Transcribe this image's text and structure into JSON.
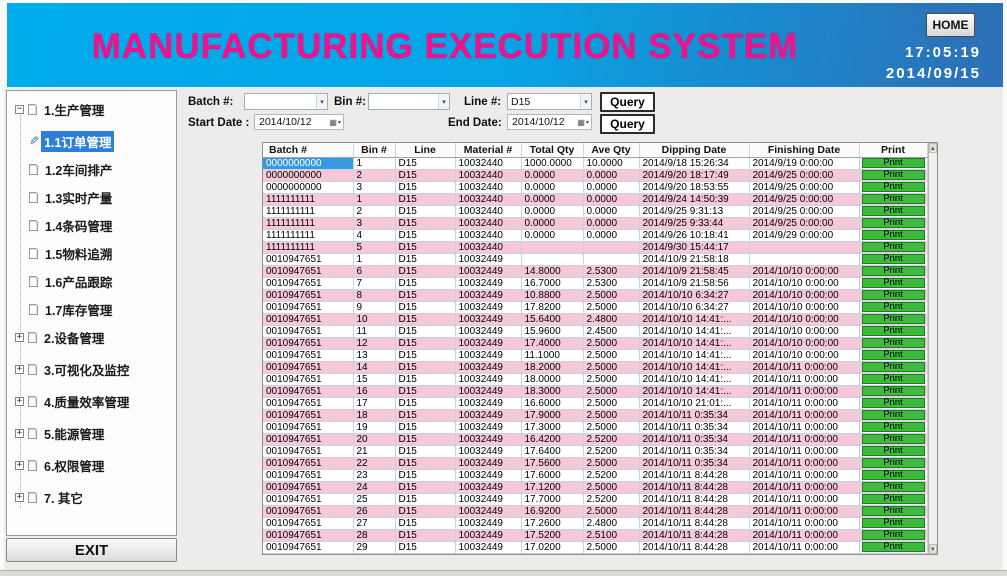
{
  "header": {
    "title": "MANUFACTURING EXECUTION SYSTEM",
    "home_label": "HOME",
    "time": "17:05:19",
    "date": "2014/09/15"
  },
  "colors": {
    "header_left": "#00ACEC",
    "header_right": "#2B72B9",
    "title_magenta": "#EC148C",
    "row_pink": "#F8C8D8",
    "print_green": "#3CBB3C",
    "selected_blue": "#3898E0"
  },
  "sidebar": {
    "exit_label": "EXIT",
    "items": [
      {
        "label": "1.生产管理",
        "level": 0,
        "expanded": true,
        "selected": false
      },
      {
        "label": "1.1订单管理",
        "level": 1,
        "selected": true
      },
      {
        "label": "1.2车间排产",
        "level": 1,
        "selected": false
      },
      {
        "label": "1.3实时产量",
        "level": 1,
        "selected": false
      },
      {
        "label": "1.4条码管理",
        "level": 1,
        "selected": false
      },
      {
        "label": "1.5物料追溯",
        "level": 1,
        "selected": false
      },
      {
        "label": "1.6产品跟踪",
        "level": 1,
        "selected": false
      },
      {
        "label": "1.7库存管理",
        "level": 1,
        "selected": false
      },
      {
        "label": "2.设备管理",
        "level": 0,
        "expanded": false,
        "selected": false
      },
      {
        "label": "3.可视化及监控",
        "level": 0,
        "expanded": false,
        "selected": false
      },
      {
        "label": "4.质量效率管理",
        "level": 0,
        "expanded": false,
        "selected": false
      },
      {
        "label": "5.能源管理",
        "level": 0,
        "expanded": false,
        "selected": false
      },
      {
        "label": "6.权限管理",
        "level": 0,
        "expanded": false,
        "selected": false
      },
      {
        "label": "7. 其它",
        "level": 0,
        "expanded": false,
        "selected": false
      }
    ]
  },
  "filters": {
    "batch_label": "Batch #:",
    "batch_value": "",
    "bin_label": "Bin #:",
    "bin_value": "",
    "line_label": "Line #:",
    "line_value": "D15",
    "query_label": "Query",
    "start_label": "Start Date :",
    "start_value": "2014/10/12",
    "end_label": "End Date:",
    "end_value": "2014/10/12",
    "query2_label": "Query"
  },
  "table": {
    "columns": [
      "Batch #",
      "Bin #",
      "Line",
      "Material #",
      "Total Qty",
      "Ave Qty",
      "Dipping Date",
      "Finishing Date",
      "Print"
    ],
    "col_keys": [
      "batch",
      "bin",
      "line",
      "material",
      "total_qty",
      "ave_qty",
      "dipping_date",
      "finishing_date"
    ],
    "print_label": "Print",
    "selected": {
      "row": 0,
      "col": 0
    },
    "rows": [
      [
        "0000000000",
        "1",
        "D15",
        "10032440",
        "1000.0000",
        "10.0000",
        "2014/9/18 15:26:34",
        "2014/9/19 0:00:00"
      ],
      [
        "0000000000",
        "2",
        "D15",
        "10032440",
        "0.0000",
        "0.0000",
        "2014/9/20 18:17:49",
        "2014/9/25 0:00:00"
      ],
      [
        "0000000000",
        "3",
        "D15",
        "10032440",
        "0.0000",
        "0.0000",
        "2014/9/20 18:53:55",
        "2014/9/25 0:00:00"
      ],
      [
        "1111111111",
        "1",
        "D15",
        "10032440",
        "0.0000",
        "0.0000",
        "2014/9/24 14:50:39",
        "2014/9/25 0:00:00"
      ],
      [
        "1111111111",
        "2",
        "D15",
        "10032440",
        "0.0000",
        "0.0000",
        "2014/9/25 9:31:13",
        "2014/9/25 0:00:00"
      ],
      [
        "1111111111",
        "3",
        "D15",
        "10032440",
        "0.0000",
        "0.0000",
        "2014/9/25 9:33:44",
        "2014/9/25 0:00:00"
      ],
      [
        "1111111111",
        "4",
        "D15",
        "10032440",
        "0.0000",
        "0.0000",
        "2014/9/26 10:18:41",
        "2014/9/29 0:00:00"
      ],
      [
        "1111111111",
        "5",
        "D15",
        "10032440",
        "",
        "",
        "2014/9/30 15:44:17",
        ""
      ],
      [
        "0010947651",
        "1",
        "D15",
        "10032449",
        "",
        "",
        "2014/10/9 21:58:18",
        ""
      ],
      [
        "0010947651",
        "6",
        "D15",
        "10032449",
        "14.8000",
        "2.5300",
        "2014/10/9 21:58:45",
        "2014/10/10 0:00:00"
      ],
      [
        "0010947651",
        "7",
        "D15",
        "10032449",
        "16.7000",
        "2.5300",
        "2014/10/9 21:58:56",
        "2014/10/10 0:00:00"
      ],
      [
        "0010947651",
        "8",
        "D15",
        "10032449",
        "10.8800",
        "2.5000",
        "2014/10/10 6:34:27",
        "2014/10/10 0:00:00"
      ],
      [
        "0010947651",
        "9",
        "D15",
        "10032449",
        "17.8200",
        "2.5000",
        "2014/10/10 6:34:27",
        "2014/10/10 0:00:00"
      ],
      [
        "0010947651",
        "10",
        "D15",
        "10032449",
        "15.6400",
        "2.4800",
        "2014/10/10 14:41:...",
        "2014/10/10 0:00:00"
      ],
      [
        "0010947651",
        "11",
        "D15",
        "10032449",
        "15.9600",
        "2.4500",
        "2014/10/10 14:41:...",
        "2014/10/10 0:00:00"
      ],
      [
        "0010947651",
        "12",
        "D15",
        "10032449",
        "17.4000",
        "2.5000",
        "2014/10/10 14:41:...",
        "2014/10/10 0:00:00"
      ],
      [
        "0010947651",
        "13",
        "D15",
        "10032449",
        "11.1000",
        "2.5000",
        "2014/10/10 14:41:...",
        "2014/10/10 0:00:00"
      ],
      [
        "0010947651",
        "14",
        "D15",
        "10032449",
        "18.2000",
        "2.5000",
        "2014/10/10 14:41:...",
        "2014/10/11 0:00:00"
      ],
      [
        "0010947651",
        "15",
        "D15",
        "10032449",
        "18.0000",
        "2.5000",
        "2014/10/10 14:41:...",
        "2014/10/11 0:00:00"
      ],
      [
        "0010947651",
        "16",
        "D15",
        "10032449",
        "18.3000",
        "2.5000",
        "2014/10/10 14:41:...",
        "2014/10/11 0:00:00"
      ],
      [
        "0010947651",
        "17",
        "D15",
        "10032449",
        "16.6000",
        "2.5000",
        "2014/10/10 21:01:...",
        "2014/10/11 0:00:00"
      ],
      [
        "0010947651",
        "18",
        "D15",
        "10032449",
        "17.9000",
        "2.5000",
        "2014/10/11 0:35:34",
        "2014/10/11 0:00:00"
      ],
      [
        "0010947651",
        "19",
        "D15",
        "10032449",
        "17.3000",
        "2.5000",
        "2014/10/11 0:35:34",
        "2014/10/11 0:00:00"
      ],
      [
        "0010947651",
        "20",
        "D15",
        "10032449",
        "16.4200",
        "2.5200",
        "2014/10/11 0:35:34",
        "2014/10/11 0:00:00"
      ],
      [
        "0010947651",
        "21",
        "D15",
        "10032449",
        "17.6400",
        "2.5200",
        "2014/10/11 0:35:34",
        "2014/10/11 0:00:00"
      ],
      [
        "0010947651",
        "22",
        "D15",
        "10032449",
        "17.5600",
        "2.5000",
        "2014/10/11 0:35:34",
        "2014/10/11 0:00:00"
      ],
      [
        "0010947651",
        "23",
        "D15",
        "10032449",
        "17.6000",
        "2.5200",
        "2014/10/11 8:44:28",
        "2014/10/11 0:00:00"
      ],
      [
        "0010947651",
        "24",
        "D15",
        "10032449",
        "17.1200",
        "2.5000",
        "2014/10/11 8:44:28",
        "2014/10/11 0:00:00"
      ],
      [
        "0010947651",
        "25",
        "D15",
        "10032449",
        "17.7000",
        "2.5200",
        "2014/10/11 8:44:28",
        "2014/10/11 0:00:00"
      ],
      [
        "0010947651",
        "26",
        "D15",
        "10032449",
        "16.9200",
        "2.5000",
        "2014/10/11 8:44:28",
        "2014/10/11 0:00:00"
      ],
      [
        "0010947651",
        "27",
        "D15",
        "10032449",
        "17.2600",
        "2.4800",
        "2014/10/11 8:44:28",
        "2014/10/11 0:00:00"
      ],
      [
        "0010947651",
        "28",
        "D15",
        "10032449",
        "17.5200",
        "2.5100",
        "2014/10/11 8:44:28",
        "2014/10/11 0:00:00"
      ],
      [
        "0010947651",
        "29",
        "D15",
        "10032449",
        "17.0200",
        "2.5000",
        "2014/10/11 8:44:28",
        "2014/10/11 0:00:00"
      ]
    ]
  }
}
